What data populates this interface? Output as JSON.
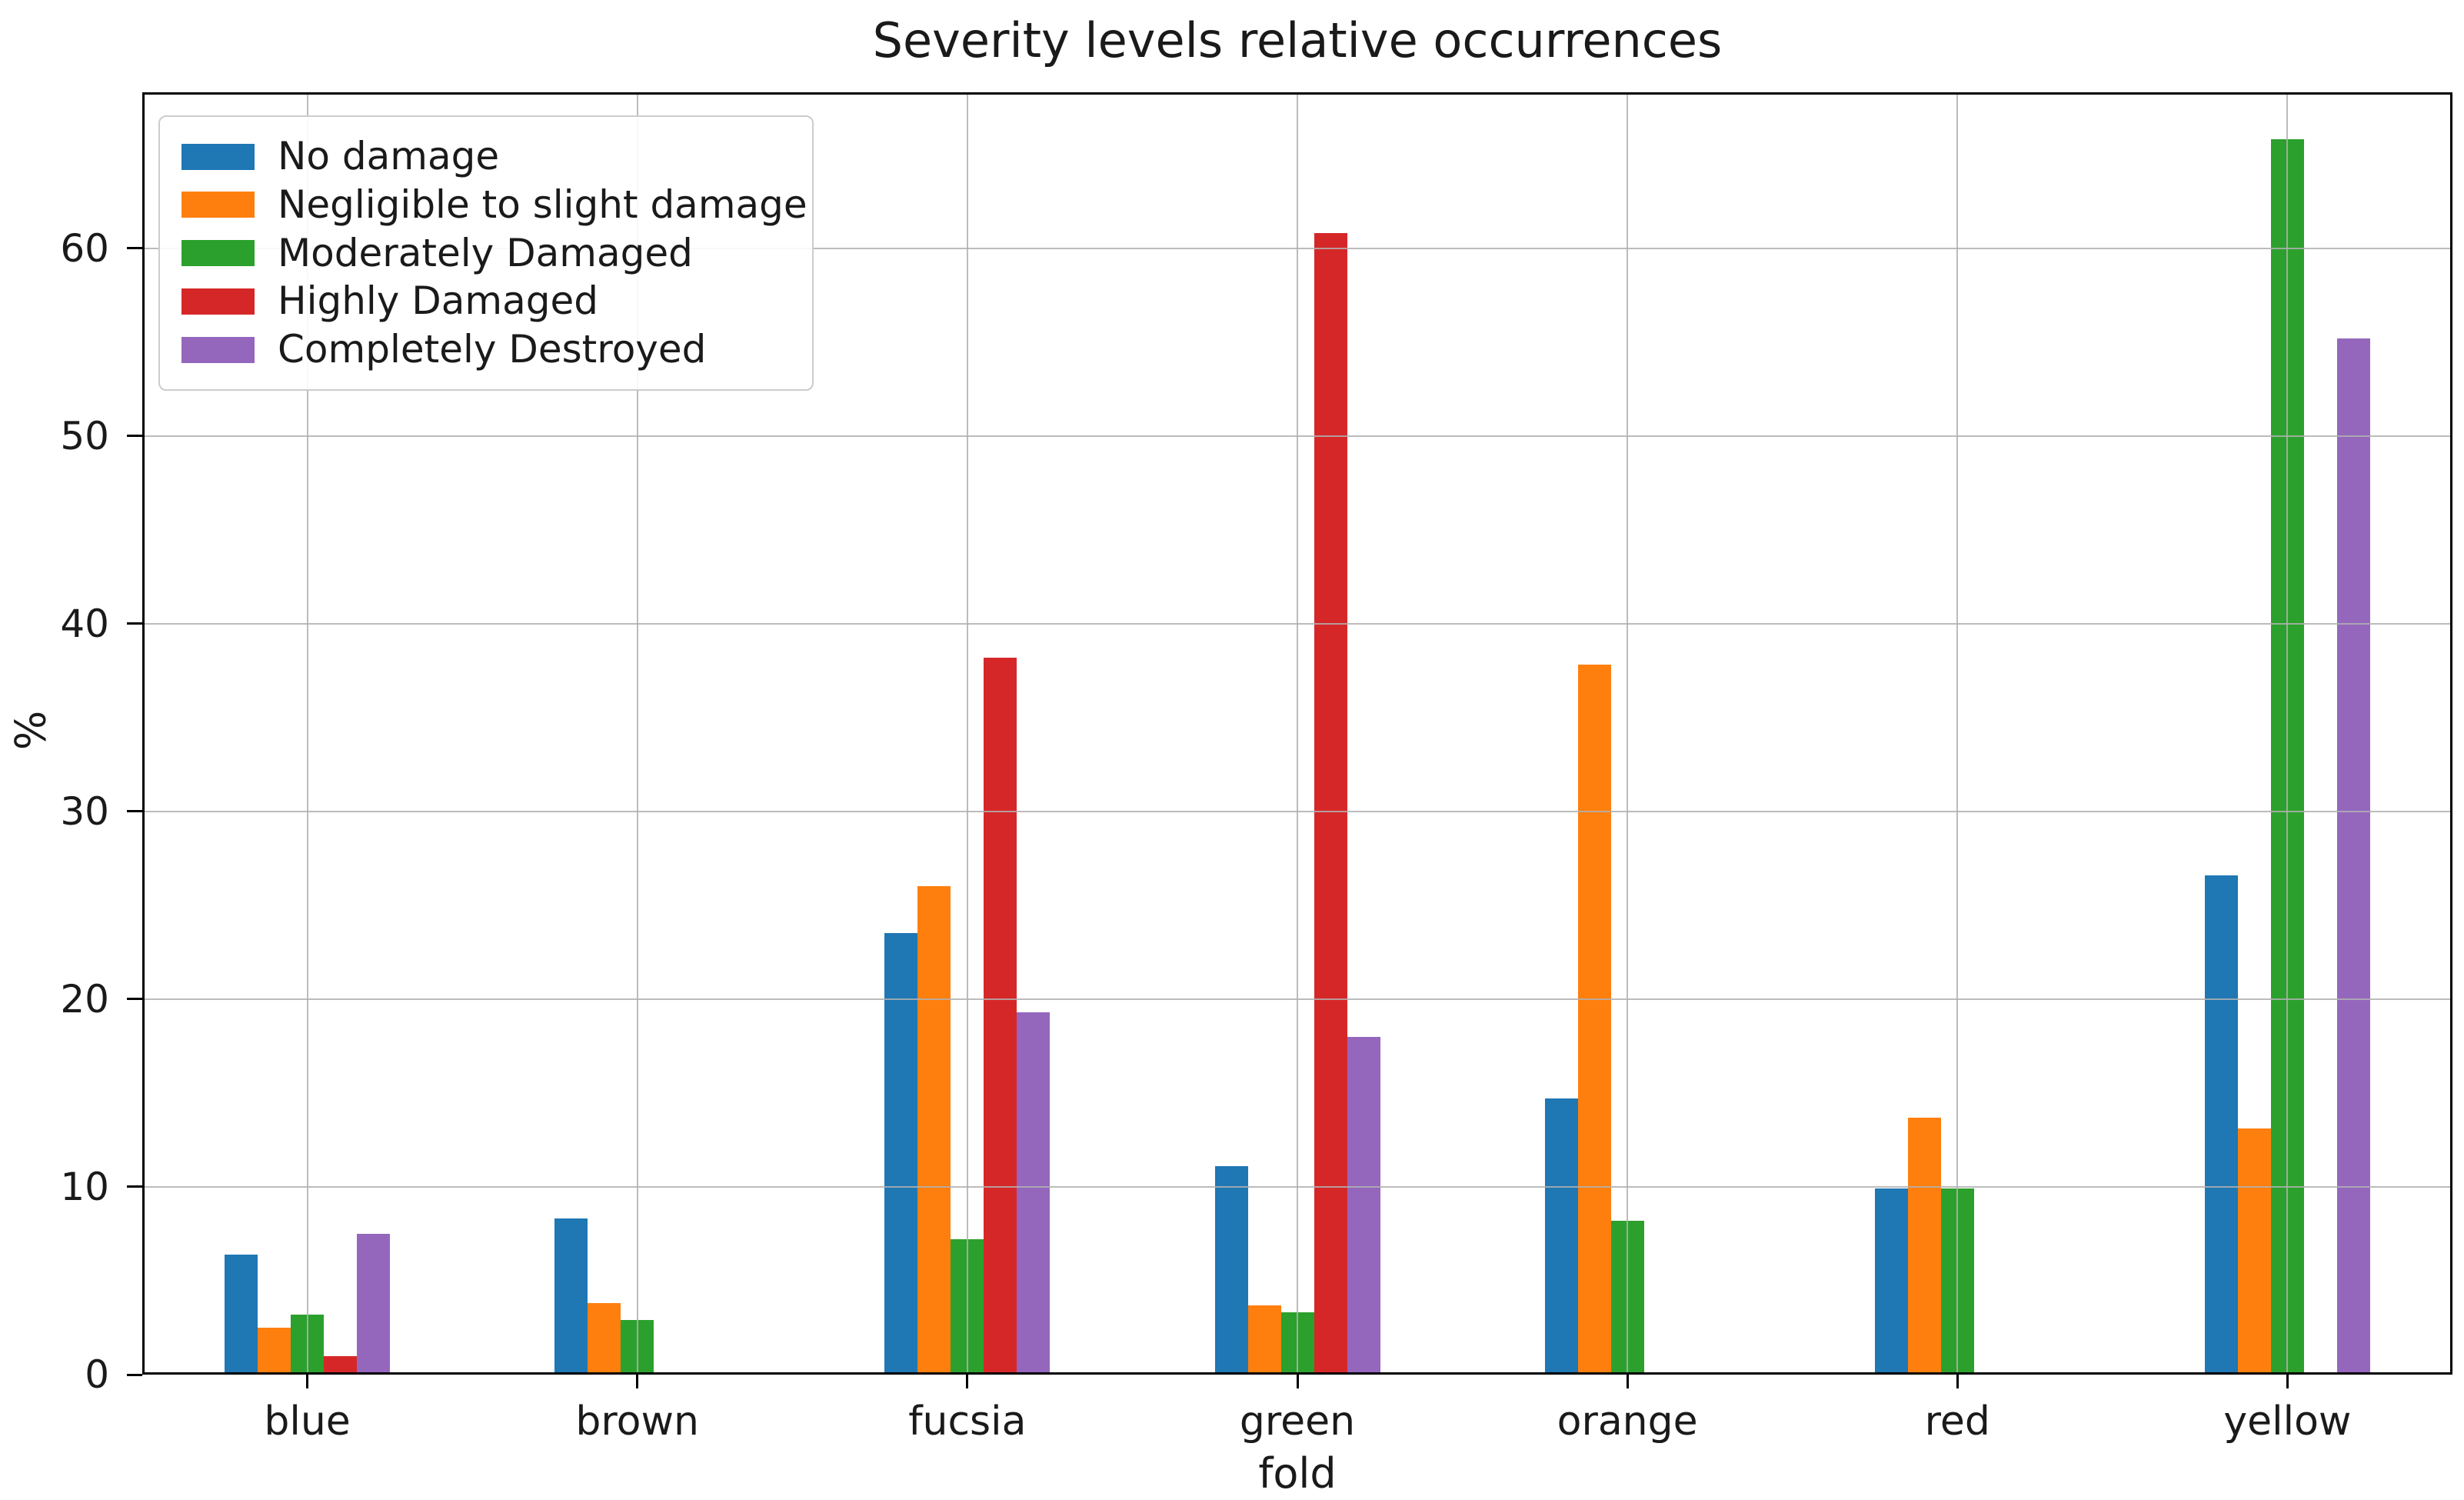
{
  "figure": {
    "title": "Severity levels relative occurrences"
  },
  "chart_data": {
    "type": "bar",
    "title": "Severity levels relative occurrences",
    "xlabel": "fold",
    "ylabel": "%",
    "categories": [
      "blue",
      "brown",
      "fucsia",
      "green",
      "orange",
      "red",
      "yellow"
    ],
    "series": [
      {
        "name": "No damage",
        "color": "#1f77b4",
        "values": [
          6.4,
          8.3,
          23.5,
          11.1,
          14.7,
          9.9,
          26.6
        ]
      },
      {
        "name": "Negligible to slight damage",
        "color": "#ff7f0e",
        "values": [
          2.5,
          3.8,
          26.0,
          3.7,
          37.8,
          13.7,
          13.1
        ]
      },
      {
        "name": "Moderately Damaged",
        "color": "#2ca02c",
        "values": [
          3.2,
          2.9,
          7.2,
          3.3,
          8.2,
          9.9,
          65.8
        ]
      },
      {
        "name": "Highly Damaged",
        "color": "#d62728",
        "values": [
          1.0,
          0,
          38.2,
          60.8,
          0,
          0,
          0
        ]
      },
      {
        "name": "Completely Destroyed",
        "color": "#9467bd",
        "values": [
          7.5,
          0,
          19.3,
          18.0,
          0,
          0,
          55.2
        ]
      }
    ],
    "ylim": [
      0,
      68.3
    ],
    "yticks": [
      0,
      10,
      20,
      30,
      40,
      50,
      60
    ],
    "grid": true,
    "legend_position": "upper left",
    "grid_color": "#b0b0b0",
    "axis_color": "#000000",
    "background": "#ffffff"
  }
}
